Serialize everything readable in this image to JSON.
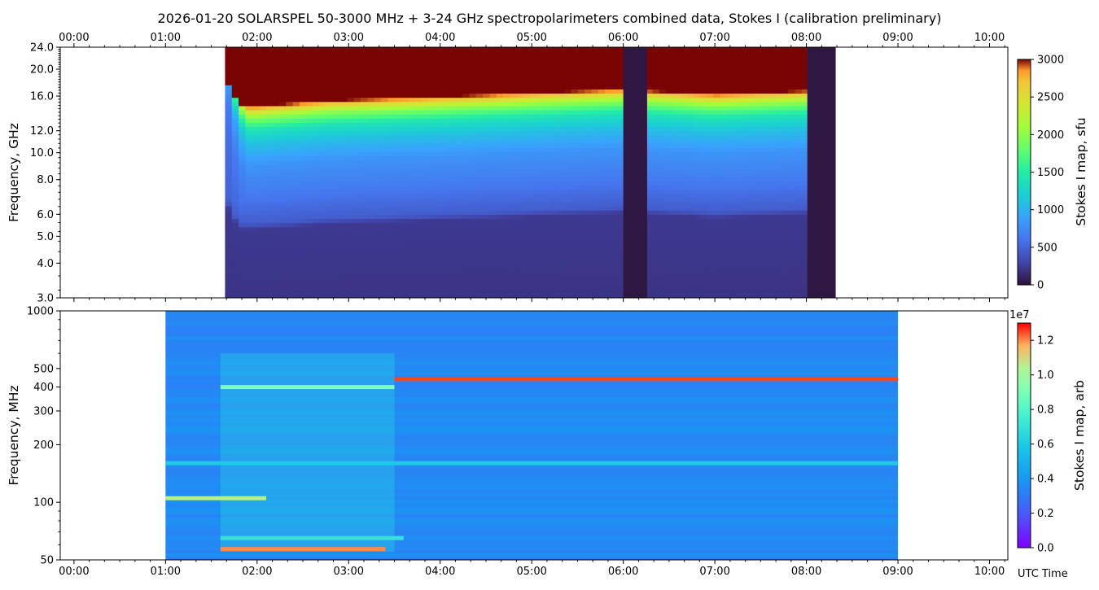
{
  "title": "2026-01-20  SOLARSPEL  50-3000 MHz  +  3-24 GHz  spectropolarimeters combined data,  Stokes I  (calibration preliminary)",
  "chart_data": [
    {
      "panel": "top",
      "type": "heatmap",
      "x_range_hours": [
        -0.15,
        10.2
      ],
      "x_ticks": [
        "00:00",
        "01:00",
        "02:00",
        "03:00",
        "04:00",
        "05:00",
        "06:00",
        "07:00",
        "08:00",
        "09:00",
        "10:00"
      ],
      "ylabel": "Frequency, GHz",
      "y_scale": "log",
      "ylim": [
        3.0,
        24.0
      ],
      "y_ticks": [
        "3.0",
        "4.0",
        "5.0",
        "6.0",
        "8.0",
        "10.0",
        "12.0",
        "16.0",
        "20.0",
        "24.0"
      ],
      "colorbar": {
        "label": "Stokes I map, sfu",
        "range": [
          0,
          3000
        ],
        "ticks": [
          "0",
          "500",
          "1000",
          "1500",
          "2000",
          "2500",
          "3000"
        ],
        "colormap": "turbo"
      },
      "data_start_hour": 1.65,
      "data_end_hour": 8.32,
      "gaps_hours": [
        [
          6.0,
          6.26
        ],
        [
          8.01,
          8.32
        ]
      ],
      "saturation_boundary_ghz": {
        "hours": [
          1.65,
          1.8,
          2.0,
          2.8,
          4.0,
          5.0,
          6.0,
          7.0,
          8.0
        ],
        "values": [
          18.5,
          14.8,
          14.8,
          15.5,
          16.0,
          16.5,
          17.0,
          16.3,
          16.8
        ]
      },
      "flux_profile_sfu": {
        "ghz": [
          3.0,
          5.9,
          6.2,
          8.0,
          10.0,
          12.0,
          13.5,
          15.0,
          16.5
        ],
        "values": [
          200,
          230,
          450,
          650,
          800,
          1100,
          1400,
          2000,
          3000
        ]
      }
    },
    {
      "panel": "bottom",
      "type": "heatmap",
      "x_range_hours": [
        -0.15,
        10.2
      ],
      "x_ticks": [
        "00:00",
        "01:00",
        "02:00",
        "03:00",
        "04:00",
        "05:00",
        "06:00",
        "07:00",
        "08:00",
        "09:00",
        "10:00"
      ],
      "xlabel": "UTC Time",
      "ylabel": "Frequency, MHz",
      "y_scale": "log",
      "ylim": [
        50,
        1000
      ],
      "y_ticks": [
        "50",
        "100",
        "200",
        "300",
        "400",
        "500",
        "1000"
      ],
      "colorbar": {
        "label": "Stokes I map, arb",
        "multiplier": "1e7",
        "range": [
          0,
          1.3
        ],
        "ticks": [
          "0.0",
          "0.2",
          "0.4",
          "0.6",
          "0.8",
          "1.0",
          "1.2"
        ],
        "colormap": "rainbow"
      },
      "data_start_hour": 1.0,
      "data_end_hour": 9.0,
      "bright_bands_mhz": [
        {
          "mhz": 57,
          "hours": [
            1.6,
            3.4
          ],
          "level": 1.2
        },
        {
          "mhz": 65,
          "hours": [
            1.6,
            3.6
          ],
          "level": 0.7
        },
        {
          "mhz": 105,
          "hours": [
            1.0,
            2.1
          ],
          "level": 1.05
        },
        {
          "mhz": 400,
          "hours": [
            1.6,
            3.5
          ],
          "level": 0.9
        },
        {
          "mhz": 440,
          "hours": [
            3.5,
            9.0
          ],
          "level": 1.25
        },
        {
          "mhz": 160,
          "hours": [
            1.0,
            9.0
          ],
          "level": 0.6
        }
      ]
    }
  ]
}
